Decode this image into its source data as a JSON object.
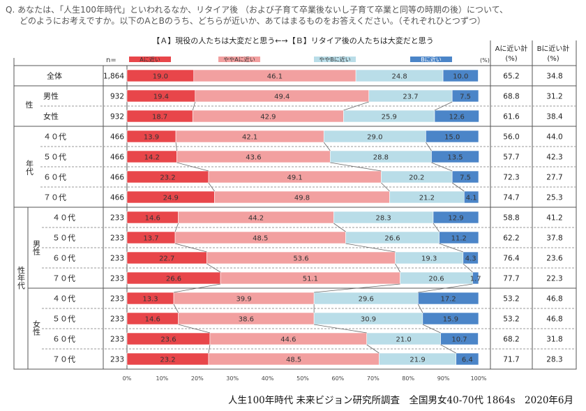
{
  "question": {
    "line1": "Q. あなたは、「人生100年時代」といわれるなか、リタイア後 （および子育て卒業後ないし子育て卒業と同等の時期の後）について、",
    "line2": "どのようにお考えですか。以下のAとBのうち、どちらが近いか、あてはまるものをお答えください。（それぞれひとつずつ）"
  },
  "header": {
    "statement": "【Ａ】現役の人たちは大変だと思う←→【Ｂ】リタイア後の人たちは大変だと思う",
    "n_label": "n=",
    "pct_label": "(%)",
    "col_a_title": "Aに近い計",
    "col_a_unit": "(%)",
    "col_b_title": "Bに近い計",
    "col_b_unit": "(%)"
  },
  "groups": {
    "sex": "性",
    "age": "年代",
    "sexage": "性年代",
    "male": "男性",
    "female": "女性"
  },
  "colors": {
    "a": "#E8464A",
    "slightly_a": "#F2A0A0",
    "slightly_b": "#B9DDE8",
    "b": "#4B85C8"
  },
  "footer": "人生100年時代 未来ビジョン研究所調査　全国男女40-70代 1864s　2020年6月",
  "chart_data": {
    "type": "bar",
    "orientation": "horizontal",
    "stacked": true,
    "percent": true,
    "xlim": [
      0,
      100
    ],
    "xticks": [
      "0%",
      "10%",
      "20%",
      "30%",
      "40%",
      "50%",
      "60%",
      "70%",
      "80%",
      "90%",
      "100%"
    ],
    "legend_position": "top",
    "categories": [
      "全体",
      "男性",
      "女性",
      "４０代",
      "５０代",
      "６０代",
      "７０代",
      "４０代",
      "５０代",
      "６０代",
      "７０代",
      "４０代",
      "５０代",
      "６０代",
      "７０代"
    ],
    "n": [
      "1,864",
      "932",
      "932",
      "466",
      "466",
      "466",
      "466",
      "233",
      "233",
      "233",
      "233",
      "233",
      "233",
      "233",
      "233"
    ],
    "series": [
      {
        "name": "Aに近い",
        "color": "#E8464A",
        "values": [
          19.0,
          19.4,
          18.7,
          13.9,
          14.2,
          23.2,
          24.9,
          14.6,
          13.7,
          22.7,
          26.6,
          13.3,
          14.6,
          23.6,
          23.2
        ]
      },
      {
        "name": "ややAに近い",
        "color": "#F2A0A0",
        "values": [
          46.1,
          49.4,
          42.9,
          42.1,
          43.6,
          49.1,
          49.8,
          44.2,
          48.5,
          53.6,
          51.1,
          39.9,
          38.6,
          44.6,
          48.5
        ]
      },
      {
        "name": "ややBに近い",
        "color": "#B9DDE8",
        "values": [
          24.8,
          23.7,
          25.9,
          29.0,
          28.8,
          20.2,
          21.2,
          28.3,
          26.6,
          19.3,
          20.6,
          29.6,
          30.9,
          21.0,
          21.9
        ]
      },
      {
        "name": "Bに近い",
        "color": "#4B85C8",
        "values": [
          10.0,
          7.5,
          12.6,
          15.0,
          13.5,
          7.5,
          4.1,
          12.9,
          11.2,
          4.3,
          1.7,
          17.2,
          15.9,
          10.7,
          6.4
        ]
      }
    ],
    "a_total": [
      "65.2",
      "68.8",
      "61.6",
      "56.0",
      "57.7",
      "72.3",
      "74.7",
      "58.8",
      "62.2",
      "76.4",
      "77.7",
      "53.2",
      "53.2",
      "68.2",
      "71.7"
    ],
    "b_total": [
      "34.8",
      "31.2",
      "38.4",
      "44.0",
      "42.3",
      "27.7",
      "25.3",
      "41.2",
      "37.8",
      "23.6",
      "22.3",
      "46.8",
      "46.8",
      "31.8",
      "28.3"
    ]
  }
}
